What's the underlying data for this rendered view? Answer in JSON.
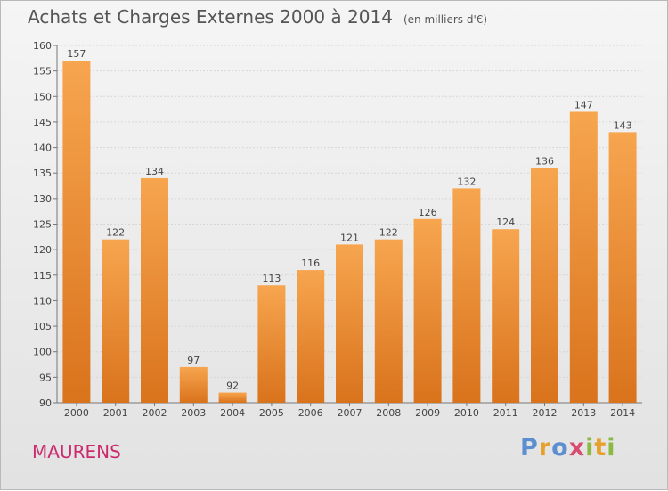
{
  "header": {
    "title": "Achats et Charges Externes 2000 à 2014",
    "unit": "(en milliers d'€)"
  },
  "footer": {
    "commune": "MAURENS",
    "logo": "Proxiti"
  },
  "colors": {
    "bar_light": "#f7a54f",
    "bar_dark": "#d9731c",
    "title": "#555555",
    "commune": "#cc2a6f"
  },
  "chart_data": {
    "type": "bar",
    "categories": [
      "2000",
      "2001",
      "2002",
      "2003",
      "2004",
      "2005",
      "2006",
      "2007",
      "2008",
      "2009",
      "2010",
      "2011",
      "2012",
      "2013",
      "2014"
    ],
    "values": [
      157,
      122,
      134,
      97,
      92,
      113,
      116,
      121,
      122,
      126,
      132,
      124,
      136,
      147,
      143
    ],
    "ylim": [
      90,
      160
    ],
    "yticks": [
      90,
      95,
      100,
      105,
      110,
      115,
      120,
      125,
      130,
      135,
      140,
      145,
      150,
      155,
      160
    ],
    "grid": true,
    "data_labels": true
  }
}
